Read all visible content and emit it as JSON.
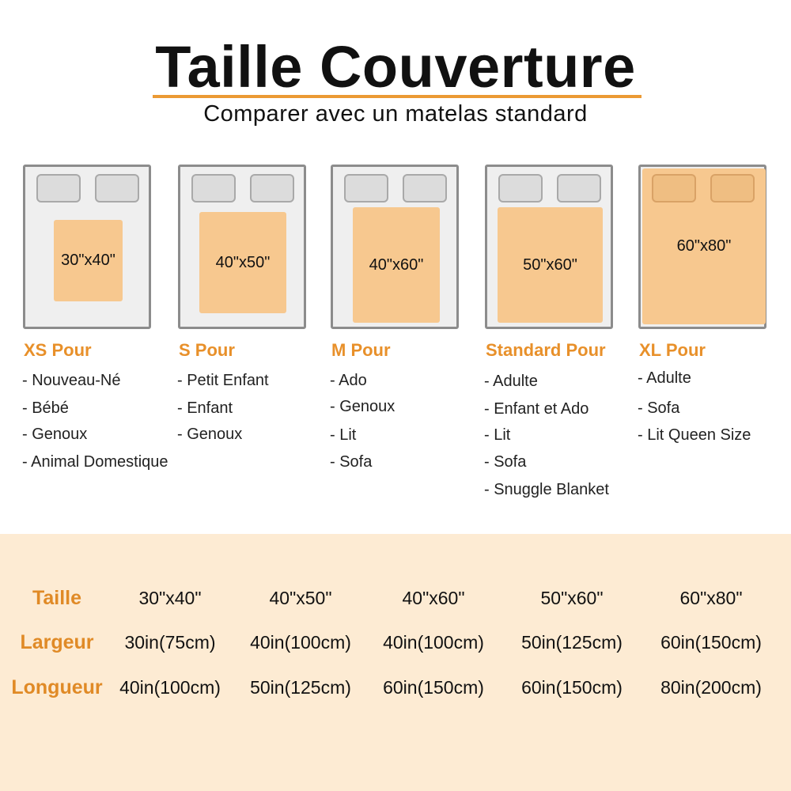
{
  "title": "Taille Couverture",
  "subtitle": "Comparer avec un matelas standard",
  "colors": {
    "accent": "#e8902a",
    "blanket": "#f7c88f",
    "panel": "#fdebd3"
  },
  "sizes": [
    {
      "label": "30\"x40\"",
      "category": "XS Pour",
      "uses": [
        "- Nouveau-Né",
        "- Bébé",
        "- Genoux",
        "- Animal Domestique"
      ]
    },
    {
      "label": "40\"x50\"",
      "category": "S Pour",
      "uses": [
        "- Petit Enfant",
        "- Enfant",
        "- Genoux"
      ]
    },
    {
      "label": "40\"x60\"",
      "category": "M Pour",
      "uses": [
        "- Ado",
        "- Genoux",
        "- Lit",
        "- Sofa"
      ]
    },
    {
      "label": "50\"x60\"",
      "category": "Standard Pour",
      "uses": [
        "- Adulte",
        "- Enfant et Ado",
        "- Lit",
        "- Sofa",
        "- Snuggle Blanket"
      ]
    },
    {
      "label": "60\"x80\"",
      "category": "XL Pour",
      "uses": [
        "- Adulte",
        "- Sofa",
        "- Lit Queen Size"
      ]
    }
  ],
  "table": {
    "rows": [
      {
        "label": "Taille",
        "values": [
          "30\"x40\"",
          "40\"x50\"",
          "40\"x60\"",
          "50\"x60\"",
          "60\"x80\""
        ]
      },
      {
        "label": "Largeur",
        "values": [
          "30in(75cm)",
          "40in(100cm)",
          "40in(100cm)",
          "50in(125cm)",
          "60in(150cm)"
        ]
      },
      {
        "label": "Longueur",
        "values": [
          "40in(100cm)",
          "50in(125cm)",
          "60in(150cm)",
          "60in(150cm)",
          "80in(200cm)"
        ]
      }
    ]
  }
}
